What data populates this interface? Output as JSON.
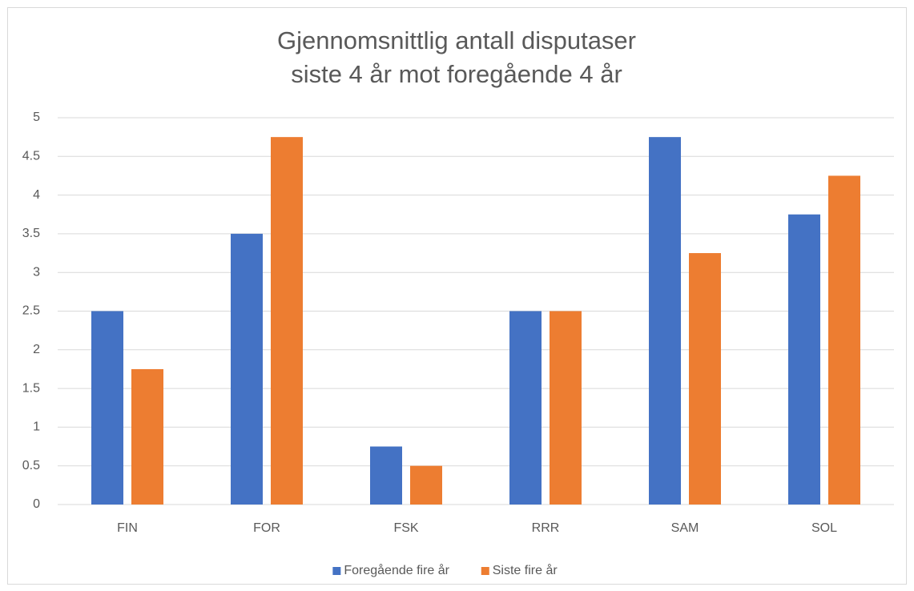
{
  "chart_data": {
    "type": "bar",
    "title": [
      "Gjennomsnittlig antall disputaser",
      "siste 4 år mot foregående 4 år"
    ],
    "categories": [
      "FIN",
      "FOR",
      "FSK",
      "RRR",
      "SAM",
      "SOL"
    ],
    "series": [
      {
        "name": "Foregående fire år",
        "color": "#4472c4",
        "values": [
          2.5,
          3.5,
          0.75,
          2.5,
          4.75,
          3.75
        ]
      },
      {
        "name": "Siste fire år",
        "color": "#ed7d31",
        "values": [
          1.75,
          4.75,
          0.5,
          2.5,
          3.25,
          4.25
        ]
      }
    ],
    "ylim": [
      0,
      5
    ],
    "yticks": [
      0,
      0.5,
      1,
      1.5,
      2,
      2.5,
      3,
      3.5,
      4,
      4.5,
      5
    ],
    "grid": true,
    "legend": "bottom"
  }
}
